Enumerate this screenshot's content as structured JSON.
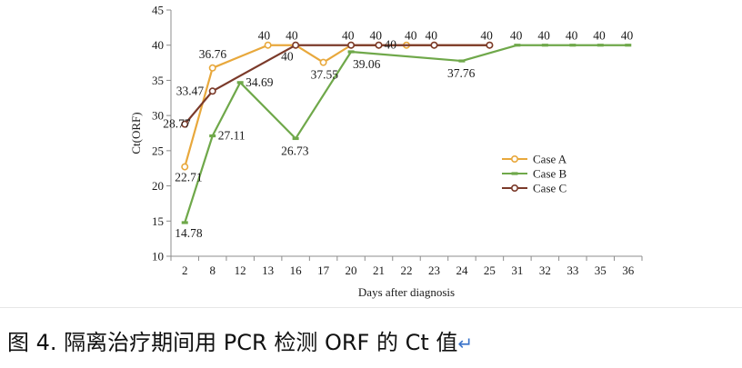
{
  "chart_data": {
    "type": "line",
    "xlabel": "Days after diagnosis",
    "ylabel": "Ct(ORF)",
    "categories": [
      "2",
      "8",
      "12",
      "13",
      "16",
      "17",
      "20",
      "21",
      "22",
      "23",
      "24",
      "25",
      "31",
      "32",
      "33",
      "35",
      "36"
    ],
    "ylim": [
      10,
      45
    ],
    "yticks": [
      10,
      15,
      20,
      25,
      30,
      35,
      40,
      45
    ],
    "grid": false,
    "legend_position": "right-middle",
    "series": [
      {
        "name": "Case A",
        "color": "#E8A83C",
        "points": [
          [
            "2",
            22.71
          ],
          [
            "8",
            36.76
          ],
          [
            "13",
            40
          ],
          [
            "16",
            40
          ],
          [
            "17",
            37.55
          ],
          [
            "20",
            40
          ],
          [
            "21",
            40
          ],
          [
            "22",
            40
          ],
          [
            "23",
            40
          ],
          [
            "25",
            40
          ]
        ],
        "labels": [
          [
            "2",
            "22.71"
          ],
          [
            "8",
            "36.76"
          ],
          [
            "13",
            "40"
          ],
          [
            "16",
            "40"
          ],
          [
            "17",
            "37.55"
          ],
          [
            "20",
            "40"
          ],
          [
            "21",
            "40"
          ],
          [
            "22",
            "40"
          ],
          [
            "23",
            "40"
          ],
          [
            "25",
            "40"
          ]
        ]
      },
      {
        "name": "Case B",
        "color": "#6FA84A",
        "points": [
          [
            "2",
            14.78
          ],
          [
            "8",
            27.11
          ],
          [
            "12",
            34.69
          ],
          [
            "16",
            26.73
          ],
          [
            "20",
            39.06
          ],
          [
            "24",
            37.76
          ],
          [
            "31",
            40
          ],
          [
            "32",
            40
          ],
          [
            "33",
            40
          ],
          [
            "35",
            40
          ],
          [
            "36",
            40
          ]
        ],
        "labels": [
          [
            "2",
            "14.78"
          ],
          [
            "8",
            "27.11"
          ],
          [
            "12",
            "34.69"
          ],
          [
            "16",
            "26.73"
          ],
          [
            "20",
            "39.06"
          ],
          [
            "24",
            "37.76"
          ],
          [
            "31",
            "40"
          ],
          [
            "32",
            "40"
          ],
          [
            "33",
            "40"
          ],
          [
            "35",
            "40"
          ],
          [
            "36",
            "40"
          ]
        ]
      },
      {
        "name": "Case C",
        "color": "#7B3A2A",
        "points": [
          [
            "2",
            28.77
          ],
          [
            "8",
            33.47
          ],
          [
            "16",
            40
          ],
          [
            "20",
            40
          ],
          [
            "21",
            40
          ],
          [
            "23",
            40
          ],
          [
            "25",
            40
          ]
        ],
        "labels": [
          [
            "2",
            "28.77"
          ],
          [
            "8",
            "33.47"
          ],
          [
            "16",
            "40"
          ],
          [
            "21",
            "40"
          ]
        ]
      }
    ]
  },
  "caption": {
    "text": "图 4.   隔离治疗期间用 PCR 检测 ORF 的 Ct 值",
    "return_mark": "↵"
  }
}
